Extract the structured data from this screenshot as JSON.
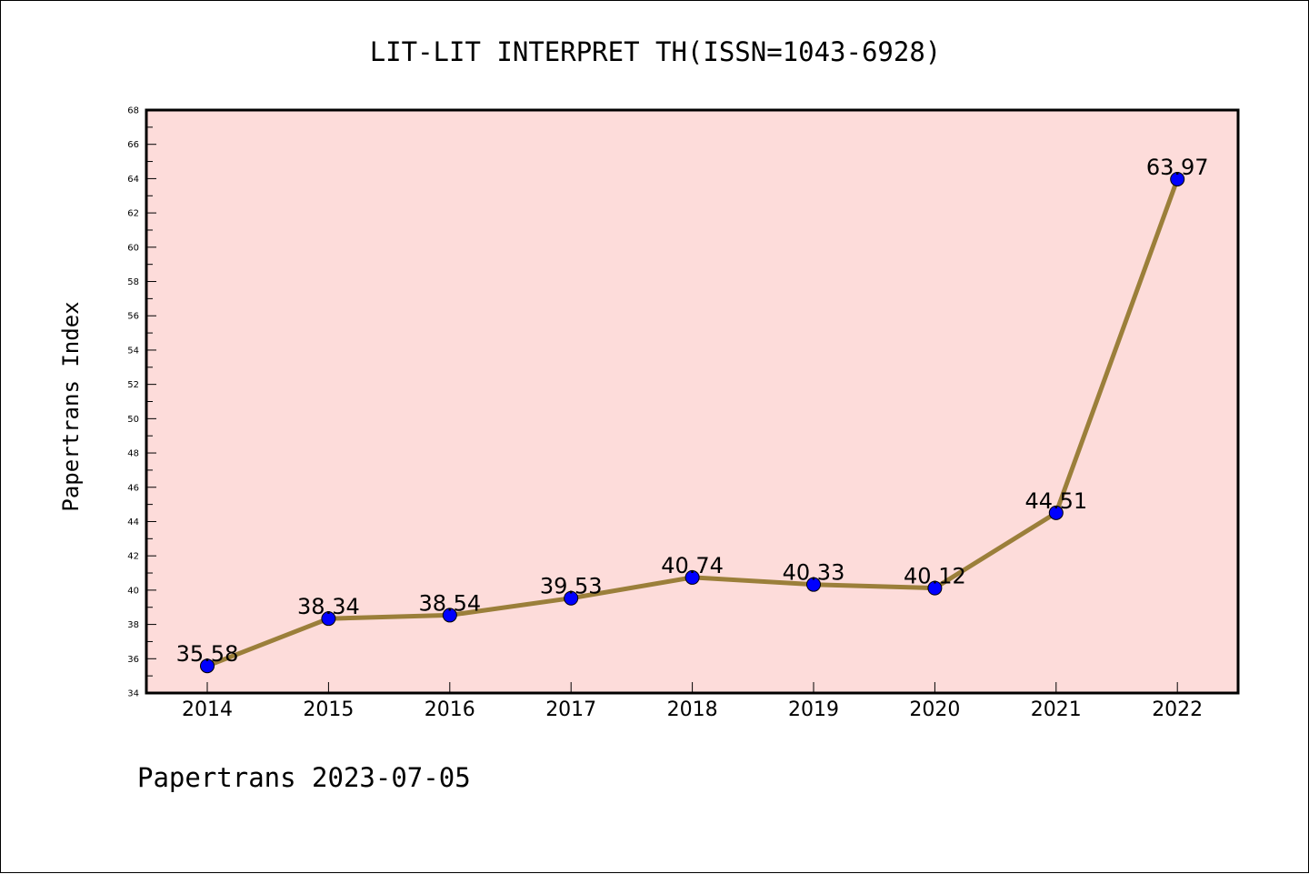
{
  "chart_data": {
    "type": "line",
    "title": "LIT-LIT INTERPRET TH(ISSN=1043-6928)",
    "xlabel": "",
    "ylabel": "Papertrans Index",
    "categories": [
      "2014",
      "2015",
      "2016",
      "2017",
      "2018",
      "2019",
      "2020",
      "2021",
      "2022"
    ],
    "values": [
      35.58,
      38.34,
      38.54,
      39.53,
      40.74,
      40.33,
      40.12,
      44.51,
      63.97
    ],
    "data_labels": [
      "35.58",
      "38.34",
      "38.54",
      "39.53",
      "40.74",
      "40.33",
      "40.12",
      "44.51",
      "63.97"
    ],
    "ylim": [
      34,
      68
    ],
    "yticks": [
      "34",
      "36",
      "38",
      "40",
      "42",
      "44",
      "46",
      "48",
      "50",
      "52",
      "54",
      "56",
      "58",
      "60",
      "62",
      "64",
      "66",
      "68"
    ],
    "grid": false,
    "legend": "none"
  },
  "footer": {
    "text": "Papertrans 2023-07-05"
  },
  "colors": {
    "plot_background": "#fddcda",
    "line": "#9b7f3a",
    "marker": "#0000ff",
    "axes": "#000000"
  }
}
